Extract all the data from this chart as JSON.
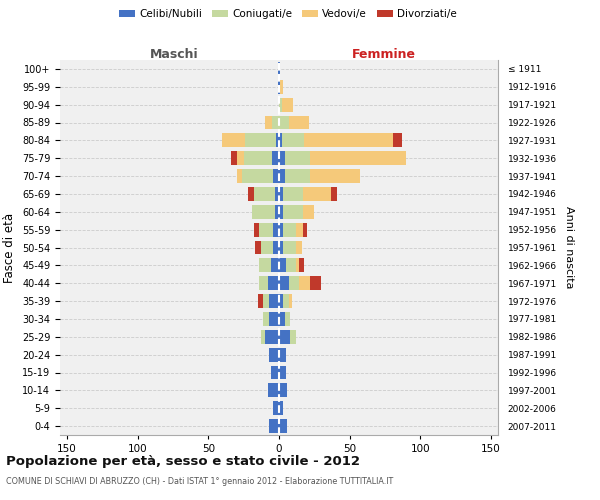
{
  "age_groups": [
    "100+",
    "95-99",
    "90-94",
    "85-89",
    "80-84",
    "75-79",
    "70-74",
    "65-69",
    "60-64",
    "55-59",
    "50-54",
    "45-49",
    "40-44",
    "35-39",
    "30-34",
    "25-29",
    "20-24",
    "15-19",
    "10-14",
    "5-9",
    "0-4"
  ],
  "birth_years": [
    "≤ 1911",
    "1912-1916",
    "1917-1921",
    "1922-1926",
    "1927-1931",
    "1932-1936",
    "1937-1941",
    "1942-1946",
    "1947-1951",
    "1952-1956",
    "1957-1961",
    "1962-1966",
    "1967-1971",
    "1972-1976",
    "1977-1981",
    "1982-1986",
    "1987-1991",
    "1992-1996",
    "1997-2001",
    "2002-2006",
    "2007-2011"
  ],
  "colors": {
    "celibi": "#4472C4",
    "coniugati": "#c5d9a0",
    "vedovi": "#f5c97a",
    "divorziati": "#c0392b"
  },
  "males": {
    "celibi": [
      1,
      1,
      0,
      0,
      2,
      5,
      4,
      3,
      3,
      4,
      4,
      6,
      8,
      7,
      7,
      10,
      7,
      6,
      8,
      4,
      7
    ],
    "coniugati": [
      0,
      0,
      0,
      5,
      22,
      20,
      22,
      15,
      16,
      10,
      9,
      8,
      6,
      4,
      4,
      3,
      0,
      0,
      0,
      0,
      0
    ],
    "vedovi": [
      0,
      0,
      0,
      5,
      16,
      5,
      4,
      0,
      0,
      0,
      0,
      0,
      0,
      0,
      0,
      0,
      0,
      0,
      0,
      0,
      0
    ],
    "divorziati": [
      0,
      0,
      0,
      0,
      0,
      4,
      0,
      4,
      0,
      4,
      4,
      0,
      0,
      4,
      0,
      0,
      0,
      0,
      0,
      0,
      0
    ]
  },
  "females": {
    "celibi": [
      1,
      1,
      0,
      0,
      2,
      4,
      4,
      3,
      3,
      3,
      3,
      5,
      7,
      3,
      4,
      8,
      5,
      5,
      6,
      3,
      6
    ],
    "coniugati": [
      0,
      0,
      2,
      7,
      16,
      18,
      18,
      14,
      14,
      9,
      9,
      7,
      7,
      4,
      4,
      4,
      0,
      0,
      0,
      0,
      0
    ],
    "vedovi": [
      0,
      2,
      8,
      14,
      63,
      68,
      35,
      20,
      8,
      5,
      4,
      2,
      8,
      2,
      0,
      0,
      0,
      0,
      0,
      0,
      0
    ],
    "divorziati": [
      0,
      0,
      0,
      0,
      6,
      0,
      0,
      4,
      0,
      3,
      0,
      4,
      8,
      0,
      0,
      0,
      0,
      0,
      0,
      0,
      0
    ]
  },
  "xlim": 155,
  "title": "Popolazione per età, sesso e stato civile - 2012",
  "subtitle": "COMUNE DI SCHIAVI DI ABRUZZO (CH) - Dati ISTAT 1° gennaio 2012 - Elaborazione TUTTITALIA.IT",
  "xlabel_left": "Maschi",
  "xlabel_right": "Femmine",
  "ylabel_left": "Fasce di età",
  "ylabel_right": "Anni di nascita",
  "bg_color": "#ffffff",
  "plot_bg": "#f0f0f0",
  "grid_color": "#cccccc"
}
